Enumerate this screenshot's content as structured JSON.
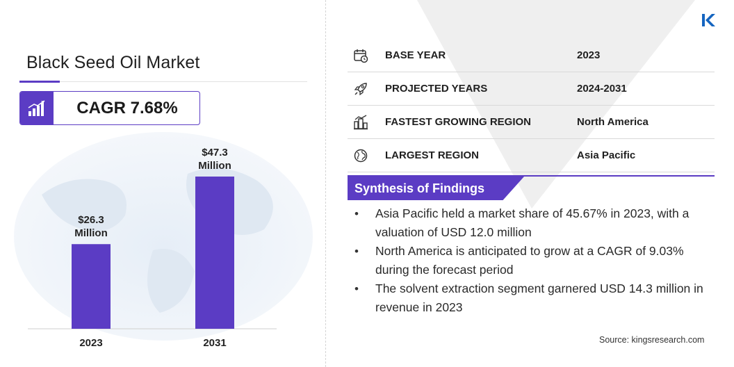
{
  "title": "Black Seed Oil Market",
  "cagr_label": "CAGR 7.68%",
  "colors": {
    "accent": "#5b3cc4",
    "bar": "#5b3cc4",
    "logo": "#1565c0"
  },
  "chart_data": {
    "type": "bar",
    "categories": [
      "2023",
      "2031"
    ],
    "values": [
      26.3,
      47.3
    ],
    "data_labels": [
      [
        "$26.3",
        "Million"
      ],
      [
        "$47.3",
        "Million"
      ]
    ],
    "unit": "USD Million",
    "ylim": [
      0,
      47.3
    ],
    "grid": false,
    "legend": "none"
  },
  "info_rows": [
    {
      "icon": "calendar-icon",
      "label": "BASE YEAR",
      "value": "2023"
    },
    {
      "icon": "rocket-icon",
      "label": "PROJECTED YEARS",
      "value": "2024-2031"
    },
    {
      "icon": "city-growth-icon",
      "label": "FASTEST GROWING REGION",
      "value": "North America"
    },
    {
      "icon": "globe-icon",
      "label": "LARGEST REGION",
      "value": "Asia Pacific"
    }
  ],
  "synthesis": {
    "title": "Synthesis of Findings",
    "items": [
      "Asia Pacific held a market share of 45.67% in 2023, with a valuation of USD 12.0 million",
      "North America is anticipated to grow at a CAGR of 9.03% during the forecast period",
      "The solvent extraction segment garnered USD 14.3 million in revenue in 2023"
    ]
  },
  "source": "Source:  kingsresearch.com"
}
